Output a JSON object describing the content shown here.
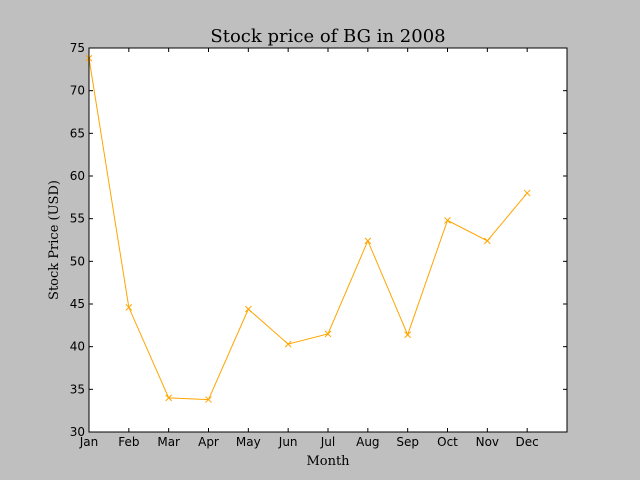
{
  "chart_data": {
    "type": "line",
    "title": "Stock price of BG in 2008",
    "xlabel": "Month",
    "ylabel": "Stock Price (USD)",
    "categories": [
      "Jan",
      "Feb",
      "Mar",
      "Apr",
      "May",
      "Jun",
      "Jul",
      "Aug",
      "Sep",
      "Oct",
      "Nov",
      "Dec"
    ],
    "x_tick_labels": [
      "Jan",
      "Feb",
      "Mar",
      "Apr",
      "May",
      "Jun",
      "Jul",
      "Aug",
      "Sep",
      "Oct",
      "Nov",
      "Dec"
    ],
    "series": [
      {
        "values": [
          73.8,
          44.6,
          34.0,
          33.8,
          44.4,
          40.3,
          41.5,
          52.4,
          41.4,
          54.8,
          52.4,
          58.0
        ],
        "color": "#ffa500",
        "marker": "x"
      }
    ],
    "ylim": [
      30,
      75
    ],
    "xlim": [
      0,
      12
    ],
    "y_ticks": [
      30,
      35,
      40,
      45,
      50,
      55,
      60,
      65,
      70,
      75
    ],
    "grid": false,
    "legend": false
  },
  "colors": {
    "figure_background": "#bfbfbf",
    "plot_background": "#ffffff",
    "axis": "#000000",
    "line": "#ffa500"
  }
}
